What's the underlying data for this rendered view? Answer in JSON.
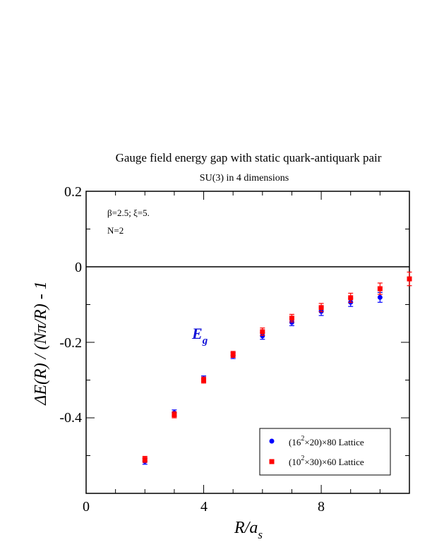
{
  "chart_data": {
    "type": "scatter",
    "title": "Gauge field energy gap with static quark-antiquark pair",
    "subtitle": "SU(3) in 4 dimensions",
    "xlabel": "R/a_s",
    "ylabel": "ΔE(R) / (Nπ/R) - 1",
    "xlim": [
      0,
      11
    ],
    "ylim": [
      -0.6,
      0.2
    ],
    "x_ticks": [
      "0",
      "4",
      "8"
    ],
    "y_ticks": [
      "0.2",
      "0",
      "-0.2",
      "-0.4"
    ],
    "annotations": {
      "params": "β=2.5;  ξ=5.",
      "n": "N=2",
      "level": "E",
      "level_sub": "g"
    },
    "reference_line_y": 0,
    "legend_position": "bottom-right",
    "series": [
      {
        "name": "(16²×20)×80 Lattice",
        "marker": "circle",
        "color": "#0000ff",
        "x": [
          2,
          3,
          4,
          5,
          6,
          7,
          8,
          9,
          10
        ],
        "y": [
          -0.515,
          -0.387,
          -0.297,
          -0.235,
          -0.183,
          -0.147,
          -0.118,
          -0.094,
          -0.081
        ],
        "err": [
          0.008,
          0.008,
          0.008,
          0.008,
          0.009,
          0.009,
          0.011,
          0.011,
          0.013
        ]
      },
      {
        "name": "(10²×30)×60 Lattice",
        "marker": "square",
        "color": "#ff0000",
        "x": [
          2,
          3,
          4,
          5,
          6,
          7,
          8,
          9,
          10,
          11
        ],
        "y": [
          -0.51,
          -0.392,
          -0.3,
          -0.232,
          -0.172,
          -0.136,
          -0.108,
          -0.082,
          -0.058,
          -0.032
        ],
        "err": [
          0.008,
          0.008,
          0.008,
          0.008,
          0.01,
          0.01,
          0.011,
          0.012,
          0.015,
          0.018
        ]
      }
    ],
    "legend": {
      "items": [
        {
          "pre": "(16",
          "sup": "2",
          "post": "×20)×80 Lattice"
        },
        {
          "pre": "(10",
          "sup": "2",
          "post": "×30)×60 Lattice"
        }
      ]
    }
  }
}
